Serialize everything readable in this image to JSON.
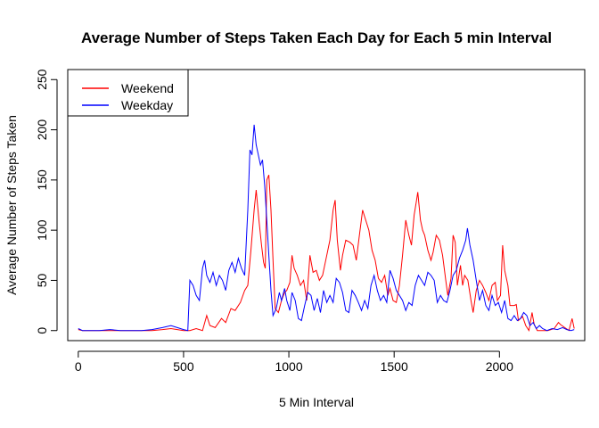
{
  "chart_data": {
    "type": "line",
    "title": "Average Number of Steps Taken Each Day for Each 5 min Interval",
    "xlabel": "5 Min Interval",
    "ylabel": "Average Number of Steps Taken",
    "xlim": [
      -50,
      2405
    ],
    "ylim": [
      -10,
      260
    ],
    "x_ticks": [
      0,
      500,
      1000,
      1500,
      2000
    ],
    "y_ticks": [
      0,
      50,
      100,
      150,
      200,
      250
    ],
    "grid": false,
    "legend_position": "top-left",
    "series": [
      {
        "name": "Weekend",
        "color": "#ff0000",
        "points": [
          [
            0,
            1
          ],
          [
            20,
            0
          ],
          [
            50,
            0
          ],
          [
            100,
            0
          ],
          [
            150,
            0
          ],
          [
            200,
            0
          ],
          [
            250,
            0
          ],
          [
            300,
            0
          ],
          [
            350,
            0
          ],
          [
            400,
            1
          ],
          [
            440,
            2
          ],
          [
            470,
            1
          ],
          [
            500,
            0
          ],
          [
            530,
            0
          ],
          [
            560,
            2
          ],
          [
            590,
            0
          ],
          [
            610,
            15
          ],
          [
            625,
            5
          ],
          [
            650,
            3
          ],
          [
            680,
            12
          ],
          [
            700,
            8
          ],
          [
            725,
            22
          ],
          [
            745,
            20
          ],
          [
            770,
            28
          ],
          [
            790,
            40
          ],
          [
            805,
            45
          ],
          [
            820,
            80
          ],
          [
            835,
            120
          ],
          [
            845,
            140
          ],
          [
            858,
            110
          ],
          [
            870,
            85
          ],
          [
            880,
            68
          ],
          [
            888,
            62
          ],
          [
            895,
            150
          ],
          [
            905,
            155
          ],
          [
            915,
            120
          ],
          [
            925,
            70
          ],
          [
            935,
            22
          ],
          [
            950,
            18
          ],
          [
            965,
            30
          ],
          [
            980,
            38
          ],
          [
            990,
            40
          ],
          [
            1005,
            48
          ],
          [
            1015,
            75
          ],
          [
            1025,
            62
          ],
          [
            1040,
            55
          ],
          [
            1055,
            45
          ],
          [
            1070,
            50
          ],
          [
            1085,
            30
          ],
          [
            1100,
            75
          ],
          [
            1115,
            58
          ],
          [
            1130,
            60
          ],
          [
            1145,
            50
          ],
          [
            1160,
            55
          ],
          [
            1180,
            75
          ],
          [
            1195,
            90
          ],
          [
            1210,
            120
          ],
          [
            1220,
            130
          ],
          [
            1230,
            90
          ],
          [
            1245,
            60
          ],
          [
            1255,
            75
          ],
          [
            1270,
            90
          ],
          [
            1290,
            88
          ],
          [
            1305,
            85
          ],
          [
            1320,
            70
          ],
          [
            1335,
            95
          ],
          [
            1350,
            120
          ],
          [
            1365,
            110
          ],
          [
            1380,
            100
          ],
          [
            1395,
            80
          ],
          [
            1410,
            70
          ],
          [
            1425,
            52
          ],
          [
            1440,
            48
          ],
          [
            1455,
            55
          ],
          [
            1470,
            35
          ],
          [
            1480,
            42
          ],
          [
            1495,
            30
          ],
          [
            1510,
            28
          ],
          [
            1525,
            45
          ],
          [
            1540,
            75
          ],
          [
            1555,
            110
          ],
          [
            1570,
            95
          ],
          [
            1582,
            85
          ],
          [
            1595,
            115
          ],
          [
            1605,
            128
          ],
          [
            1612,
            138
          ],
          [
            1625,
            110
          ],
          [
            1635,
            100
          ],
          [
            1645,
            95
          ],
          [
            1660,
            80
          ],
          [
            1675,
            70
          ],
          [
            1685,
            78
          ],
          [
            1700,
            95
          ],
          [
            1715,
            90
          ],
          [
            1730,
            75
          ],
          [
            1745,
            50
          ],
          [
            1755,
            35
          ],
          [
            1770,
            52
          ],
          [
            1780,
            95
          ],
          [
            1790,
            88
          ],
          [
            1800,
            45
          ],
          [
            1815,
            65
          ],
          [
            1825,
            45
          ],
          [
            1835,
            55
          ],
          [
            1850,
            50
          ],
          [
            1865,
            30
          ],
          [
            1875,
            18
          ],
          [
            1890,
            40
          ],
          [
            1905,
            50
          ],
          [
            1920,
            45
          ],
          [
            1935,
            38
          ],
          [
            1950,
            30
          ],
          [
            1965,
            45
          ],
          [
            1980,
            48
          ],
          [
            1990,
            30
          ],
          [
            2005,
            35
          ],
          [
            2015,
            85
          ],
          [
            2025,
            60
          ],
          [
            2040,
            45
          ],
          [
            2050,
            25
          ],
          [
            2070,
            25
          ],
          [
            2080,
            26
          ],
          [
            2090,
            10
          ],
          [
            2110,
            14
          ],
          [
            2125,
            5
          ],
          [
            2140,
            0
          ],
          [
            2155,
            18
          ],
          [
            2165,
            6
          ],
          [
            2180,
            0
          ],
          [
            2200,
            0
          ],
          [
            2230,
            0
          ],
          [
            2260,
            2
          ],
          [
            2280,
            8
          ],
          [
            2290,
            6
          ],
          [
            2310,
            3
          ],
          [
            2330,
            0
          ],
          [
            2345,
            12
          ],
          [
            2355,
            2
          ]
        ]
      },
      {
        "name": "Weekday",
        "color": "#0000ff",
        "points": [
          [
            0,
            2
          ],
          [
            20,
            0
          ],
          [
            50,
            0
          ],
          [
            100,
            0
          ],
          [
            150,
            1
          ],
          [
            200,
            0
          ],
          [
            250,
            0
          ],
          [
            300,
            0
          ],
          [
            350,
            1
          ],
          [
            400,
            3
          ],
          [
            440,
            5
          ],
          [
            470,
            3
          ],
          [
            500,
            1
          ],
          [
            520,
            0
          ],
          [
            530,
            50
          ],
          [
            545,
            45
          ],
          [
            560,
            35
          ],
          [
            575,
            30
          ],
          [
            590,
            62
          ],
          [
            600,
            70
          ],
          [
            610,
            55
          ],
          [
            625,
            48
          ],
          [
            640,
            58
          ],
          [
            655,
            45
          ],
          [
            670,
            55
          ],
          [
            685,
            50
          ],
          [
            700,
            40
          ],
          [
            715,
            60
          ],
          [
            730,
            68
          ],
          [
            745,
            58
          ],
          [
            760,
            72
          ],
          [
            775,
            62
          ],
          [
            790,
            55
          ],
          [
            805,
            120
          ],
          [
            815,
            180
          ],
          [
            825,
            175
          ],
          [
            835,
            205
          ],
          [
            845,
            185
          ],
          [
            855,
            175
          ],
          [
            865,
            165
          ],
          [
            875,
            170
          ],
          [
            885,
            145
          ],
          [
            895,
            110
          ],
          [
            905,
            75
          ],
          [
            915,
            40
          ],
          [
            925,
            15
          ],
          [
            940,
            22
          ],
          [
            955,
            38
          ],
          [
            965,
            30
          ],
          [
            980,
            42
          ],
          [
            990,
            30
          ],
          [
            1005,
            20
          ],
          [
            1015,
            38
          ],
          [
            1030,
            30
          ],
          [
            1045,
            12
          ],
          [
            1060,
            10
          ],
          [
            1075,
            25
          ],
          [
            1090,
            38
          ],
          [
            1105,
            35
          ],
          [
            1120,
            20
          ],
          [
            1135,
            32
          ],
          [
            1150,
            18
          ],
          [
            1165,
            40
          ],
          [
            1180,
            28
          ],
          [
            1195,
            35
          ],
          [
            1210,
            28
          ],
          [
            1225,
            52
          ],
          [
            1240,
            48
          ],
          [
            1255,
            38
          ],
          [
            1270,
            20
          ],
          [
            1285,
            18
          ],
          [
            1300,
            40
          ],
          [
            1315,
            35
          ],
          [
            1330,
            28
          ],
          [
            1345,
            20
          ],
          [
            1360,
            30
          ],
          [
            1375,
            22
          ],
          [
            1390,
            45
          ],
          [
            1405,
            55
          ],
          [
            1420,
            40
          ],
          [
            1435,
            30
          ],
          [
            1450,
            35
          ],
          [
            1465,
            28
          ],
          [
            1480,
            60
          ],
          [
            1495,
            52
          ],
          [
            1510,
            40
          ],
          [
            1525,
            35
          ],
          [
            1540,
            30
          ],
          [
            1555,
            20
          ],
          [
            1570,
            28
          ],
          [
            1585,
            25
          ],
          [
            1600,
            45
          ],
          [
            1615,
            55
          ],
          [
            1630,
            50
          ],
          [
            1645,
            45
          ],
          [
            1660,
            58
          ],
          [
            1675,
            55
          ],
          [
            1690,
            50
          ],
          [
            1705,
            28
          ],
          [
            1720,
            35
          ],
          [
            1735,
            30
          ],
          [
            1750,
            28
          ],
          [
            1765,
            40
          ],
          [
            1780,
            55
          ],
          [
            1795,
            60
          ],
          [
            1810,
            72
          ],
          [
            1825,
            80
          ],
          [
            1840,
            90
          ],
          [
            1848,
            102
          ],
          [
            1860,
            85
          ],
          [
            1875,
            70
          ],
          [
            1890,
            50
          ],
          [
            1905,
            30
          ],
          [
            1920,
            40
          ],
          [
            1935,
            25
          ],
          [
            1950,
            20
          ],
          [
            1965,
            35
          ],
          [
            1980,
            25
          ],
          [
            1995,
            28
          ],
          [
            2010,
            18
          ],
          [
            2025,
            30
          ],
          [
            2040,
            12
          ],
          [
            2055,
            10
          ],
          [
            2070,
            15
          ],
          [
            2085,
            10
          ],
          [
            2100,
            12
          ],
          [
            2115,
            18
          ],
          [
            2130,
            15
          ],
          [
            2145,
            5
          ],
          [
            2160,
            8
          ],
          [
            2175,
            2
          ],
          [
            2190,
            5
          ],
          [
            2205,
            2
          ],
          [
            2225,
            0
          ],
          [
            2250,
            2
          ],
          [
            2275,
            1
          ],
          [
            2300,
            3
          ],
          [
            2320,
            1
          ],
          [
            2340,
            0
          ],
          [
            2355,
            1
          ]
        ]
      }
    ]
  }
}
